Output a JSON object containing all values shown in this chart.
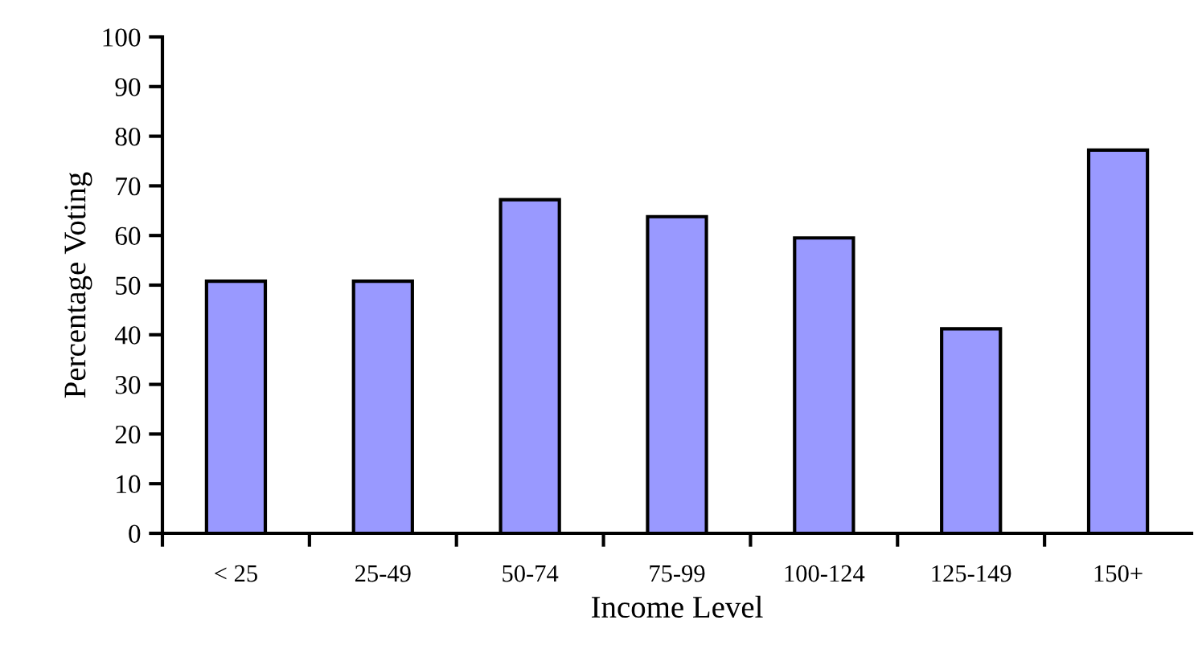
{
  "chart_data": {
    "type": "bar",
    "xlabel": "Income Level",
    "ylabel": "Percentage Voting",
    "categories": [
      "< 25",
      "25-49",
      "50-74",
      "75-99",
      "100-124",
      "125-149",
      "150+"
    ],
    "values": [
      50.8,
      50.8,
      67.2,
      63.8,
      59.5,
      41.2,
      77.2
    ],
    "color": "#9999ff",
    "ylim": [
      0,
      100
    ],
    "yticks": [
      0,
      10,
      20,
      30,
      40,
      50,
      60,
      70,
      80,
      90,
      100
    ],
    "grid": false,
    "legend": false
  }
}
